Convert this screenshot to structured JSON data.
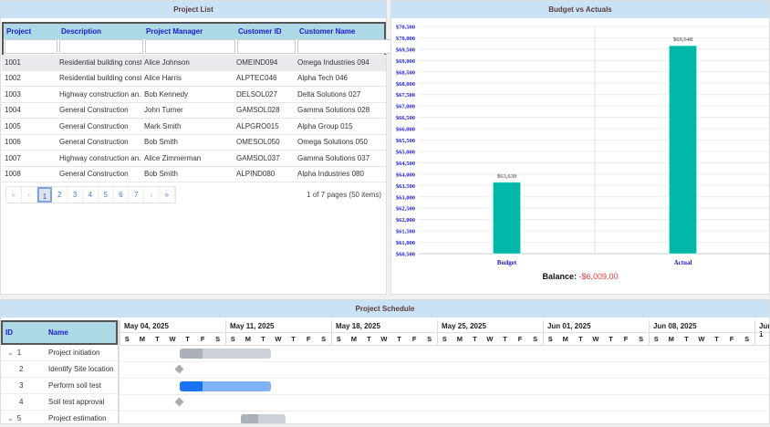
{
  "project_list": {
    "title": "Project List",
    "columns": [
      "Project",
      "Description",
      "Project Manager",
      "Customer ID",
      "Customer Name"
    ],
    "rows": [
      [
        "1001",
        "Residential building const...",
        "Alice Johnson",
        "OMEIND094",
        "Omega Industries 094"
      ],
      [
        "1002",
        "Residential building const...",
        "Alice Harris",
        "ALPTEC046",
        "Alpha Tech 046"
      ],
      [
        "1003",
        "Highway construction an...",
        "Bob Kennedy",
        "DELSOL027",
        "Delta Solutions 027"
      ],
      [
        "1004",
        "General Construction",
        "John Turner",
        "GAMSOL028",
        "Gamma Solutions 028"
      ],
      [
        "1005",
        "General Construction",
        "Mark Smith",
        "ALPGRO015",
        "Alpha Group 015"
      ],
      [
        "1006",
        "General Construction",
        "Bob Smith",
        "OMESOL050",
        "Omega Solutions 050"
      ],
      [
        "1007",
        "Highway construction an...",
        "Alice Zimmerman",
        "GAMSOL037",
        "Gamma Solutions 037"
      ],
      [
        "1008",
        "General Construction",
        "Bob Smith",
        "ALPIND080",
        "Alpha Industries 080"
      ]
    ],
    "pager": {
      "first": "«",
      "prev": "‹",
      "pages": [
        "1",
        "2",
        "3",
        "4",
        "5",
        "6",
        "7"
      ],
      "current": "1",
      "next": "›",
      "last": "»",
      "info": "1 of 7 pages (50 items)"
    }
  },
  "budget": {
    "title": "Budget vs Actuals",
    "balance_label": "Balance:",
    "balance_value": "-$6,009.00"
  },
  "chart_data": {
    "type": "bar",
    "categories": [
      "Budget",
      "Actual"
    ],
    "values": [
      63639,
      69648
    ],
    "data_labels": [
      "$63,639",
      "$69,648"
    ],
    "ylim": [
      60500,
      70500
    ],
    "ytick_step": 500,
    "bar_color": "#00b8a9",
    "grid": true
  },
  "schedule": {
    "title": "Project Schedule",
    "columns": [
      "ID",
      "Name"
    ],
    "weeks": [
      "May 04, 2025",
      "May 11, 2025",
      "May 18, 2025",
      "May 25, 2025",
      "Jun 01, 2025",
      "Jun 08, 2025",
      "Jun 1"
    ],
    "day_letters": [
      "S",
      "M",
      "T",
      "W",
      "T",
      "F",
      "S"
    ],
    "tasks": [
      {
        "id": "1",
        "name": "Project initiation",
        "expander": "⌄",
        "type": "summary",
        "start_day": 4,
        "duration": 6,
        "progress": 25
      },
      {
        "id": "2",
        "name": "Identify Site location",
        "type": "milestone",
        "start_day": 4
      },
      {
        "id": "3",
        "name": "Perform soil test",
        "type": "task",
        "start_day": 4,
        "duration": 6,
        "progress": 25
      },
      {
        "id": "4",
        "name": "Soil test approval",
        "type": "milestone",
        "start_day": 4
      },
      {
        "id": "5",
        "name": "Project estimation",
        "expander": "⌄",
        "type": "summary",
        "start_day": 8,
        "duration": 3,
        "progress": 40
      }
    ]
  }
}
